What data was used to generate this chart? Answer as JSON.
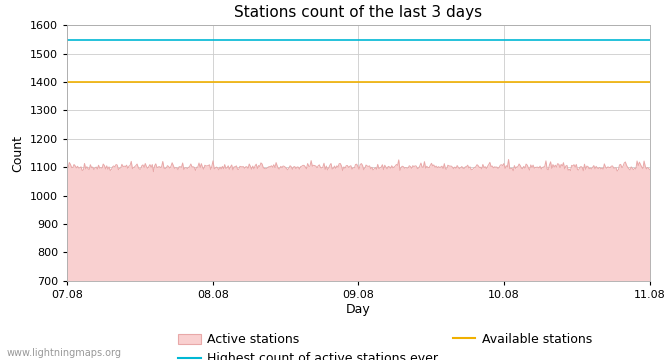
{
  "title": "Stations count of the last 3 days",
  "xlabel": "Day",
  "ylabel": "Count",
  "ylim": [
    700,
    1600
  ],
  "yticks": [
    700,
    800,
    900,
    1000,
    1100,
    1200,
    1300,
    1400,
    1500,
    1600
  ],
  "x_start": 0,
  "x_end": 4,
  "xtick_labels": [
    "07.08",
    "08.08",
    "09.08",
    "10.08",
    "11.08"
  ],
  "xtick_positions": [
    0,
    1,
    2,
    3,
    4
  ],
  "active_stations_mean": 1100,
  "active_stations_noise": 6,
  "highest_count_ever": 1548,
  "available_stations": 1400,
  "active_fill_color": "#f9d0d0",
  "active_line_color": "#e8a8a8",
  "highest_line_color": "#00b8d4",
  "available_line_color": "#f0b000",
  "background_color": "#ffffff",
  "grid_color": "#cccccc",
  "title_fontsize": 11,
  "label_fontsize": 9,
  "tick_fontsize": 8,
  "watermark": "www.lightningmaps.org",
  "n_points": 500
}
